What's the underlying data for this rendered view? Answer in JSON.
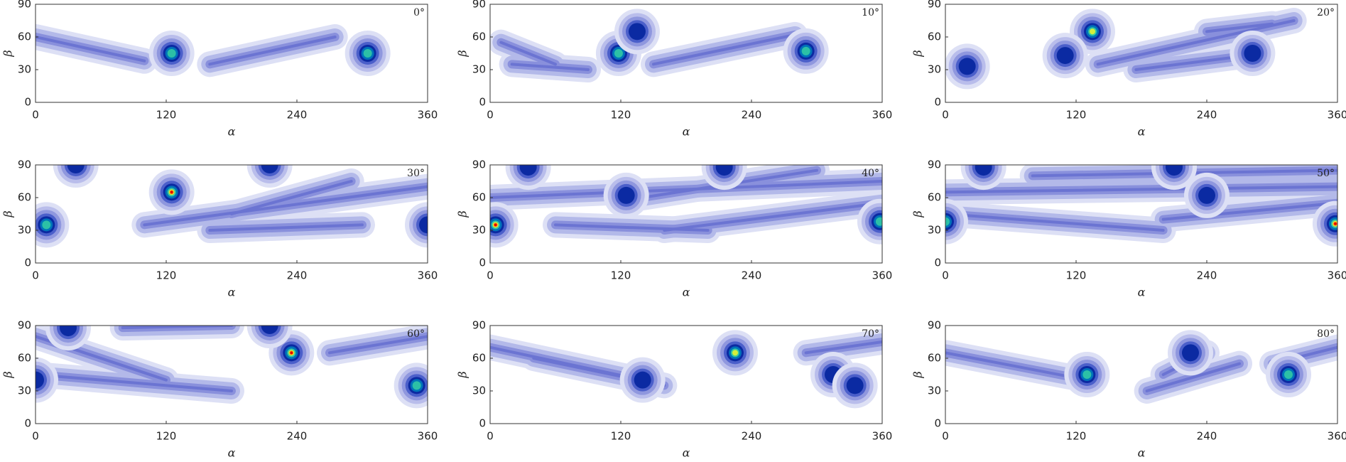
{
  "chart_data": [
    {
      "type": "contour",
      "title": "0°",
      "xlabel": "α",
      "ylabel": "β",
      "xlim": [
        0,
        360
      ],
      "ylim": [
        0,
        90
      ],
      "xticks": [
        0,
        120,
        240,
        360
      ],
      "yticks": [
        0,
        30,
        60,
        90
      ],
      "peaks": {
        "x": [
          125,
          305
        ],
        "y": [
          45,
          45
        ],
        "level": [
          2,
          2
        ]
      },
      "ridges": [
        {
          "x": [
            0,
            100
          ],
          "y": [
            60,
            38
          ]
        },
        {
          "x": [
            160,
            275
          ],
          "y": [
            35,
            60
          ]
        }
      ]
    },
    {
      "type": "contour",
      "title": "10°",
      "xlabel": "α",
      "ylabel": "β",
      "xlim": [
        0,
        360
      ],
      "ylim": [
        0,
        90
      ],
      "xticks": [
        0,
        120,
        240,
        360
      ],
      "yticks": [
        0,
        30,
        60,
        90
      ],
      "peaks": {
        "x": [
          118,
          135,
          290
        ],
        "y": [
          45,
          65,
          47
        ],
        "level": [
          2,
          1,
          2
        ]
      },
      "ridges": [
        {
          "x": [
            10,
            60
          ],
          "y": [
            55,
            35
          ]
        },
        {
          "x": [
            150,
            280
          ],
          "y": [
            35,
            62
          ]
        },
        {
          "x": [
            20,
            90
          ],
          "y": [
            35,
            30
          ]
        }
      ]
    },
    {
      "type": "contour",
      "title": "20°",
      "xlabel": "α",
      "ylabel": "β",
      "xlim": [
        0,
        360
      ],
      "ylim": [
        0,
        90
      ],
      "xticks": [
        0,
        120,
        240,
        360
      ],
      "yticks": [
        0,
        30,
        60,
        90
      ],
      "peaks": {
        "x": [
          20,
          135,
          110,
          282
        ],
        "y": [
          33,
          65,
          43,
          45
        ],
        "level": [
          1,
          3,
          1,
          1
        ]
      },
      "ridges": [
        {
          "x": [
            140,
            320
          ],
          "y": [
            35,
            75
          ]
        },
        {
          "x": [
            175,
            270
          ],
          "y": [
            30,
            42
          ]
        },
        {
          "x": [
            240,
            300
          ],
          "y": [
            65,
            72
          ]
        }
      ]
    },
    {
      "type": "contour",
      "title": "30°",
      "xlabel": "α",
      "ylabel": "β",
      "xlim": [
        0,
        360
      ],
      "ylim": [
        0,
        90
      ],
      "xticks": [
        0,
        120,
        240,
        360
      ],
      "yticks": [
        0,
        30,
        60,
        90
      ],
      "peaks": {
        "x": [
          10,
          125,
          37,
          215,
          360
        ],
        "y": [
          35,
          65,
          90,
          90,
          35
        ],
        "level": [
          2,
          4,
          1,
          1,
          1
        ]
      },
      "ridges": [
        {
          "x": [
            100,
            360
          ],
          "y": [
            35,
            70
          ]
        },
        {
          "x": [
            160,
            300
          ],
          "y": [
            30,
            35
          ]
        },
        {
          "x": [
            180,
            290
          ],
          "y": [
            45,
            75
          ]
        }
      ]
    },
    {
      "type": "contour",
      "title": "40°",
      "xlabel": "α",
      "ylabel": "β",
      "xlim": [
        0,
        360
      ],
      "ylim": [
        0,
        90
      ],
      "xticks": [
        0,
        120,
        240,
        360
      ],
      "yticks": [
        0,
        30,
        60,
        90
      ],
      "peaks": {
        "x": [
          5,
          35,
          125,
          215,
          358
        ],
        "y": [
          35,
          88,
          62,
          88,
          38
        ],
        "level": [
          4,
          1,
          1,
          1,
          2
        ]
      },
      "ridges": [
        {
          "x": [
            0,
            360
          ],
          "y": [
            60,
            75
          ]
        },
        {
          "x": [
            60,
            200
          ],
          "y": [
            35,
            30
          ]
        },
        {
          "x": [
            160,
            360
          ],
          "y": [
            30,
            55
          ]
        },
        {
          "x": [
            140,
            300
          ],
          "y": [
            60,
            85
          ]
        }
      ]
    },
    {
      "type": "contour",
      "title": "50°",
      "xlabel": "α",
      "ylabel": "β",
      "xlim": [
        0,
        360
      ],
      "ylim": [
        0,
        90
      ],
      "xticks": [
        0,
        120,
        240,
        360
      ],
      "yticks": [
        0,
        30,
        60,
        90
      ],
      "peaks": {
        "x": [
          0,
          35,
          210,
          240,
          358
        ],
        "y": [
          38,
          88,
          88,
          62,
          36
        ],
        "level": [
          2,
          1,
          1,
          1,
          4
        ]
      },
      "ridges": [
        {
          "x": [
            0,
            360
          ],
          "y": [
            65,
            70
          ]
        },
        {
          "x": [
            0,
            200
          ],
          "y": [
            45,
            30
          ]
        },
        {
          "x": [
            80,
            360
          ],
          "y": [
            80,
            85
          ]
        },
        {
          "x": [
            200,
            360
          ],
          "y": [
            40,
            55
          ]
        }
      ]
    },
    {
      "type": "contour",
      "title": "60°",
      "xlabel": "α",
      "ylabel": "β",
      "xlim": [
        0,
        360
      ],
      "ylim": [
        0,
        90
      ],
      "xticks": [
        0,
        120,
        240,
        360
      ],
      "yticks": [
        0,
        30,
        60,
        90
      ],
      "peaks": {
        "x": [
          235,
          350,
          30,
          215,
          0
        ],
        "y": [
          65,
          35,
          88,
          90,
          40
        ],
        "level": [
          4,
          2,
          1,
          1,
          1
        ]
      },
      "ridges": [
        {
          "x": [
            0,
            120
          ],
          "y": [
            80,
            40
          ]
        },
        {
          "x": [
            0,
            180
          ],
          "y": [
            45,
            30
          ]
        },
        {
          "x": [
            270,
            360
          ],
          "y": [
            65,
            80
          ]
        },
        {
          "x": [
            80,
            180
          ],
          "y": [
            88,
            90
          ]
        }
      ]
    },
    {
      "type": "contour",
      "title": "70°",
      "xlabel": "α",
      "ylabel": "β",
      "xlim": [
        0,
        360
      ],
      "ylim": [
        0,
        90
      ],
      "xticks": [
        0,
        120,
        240,
        360
      ],
      "yticks": [
        0,
        30,
        60,
        90
      ],
      "peaks": {
        "x": [
          225,
          140,
          315,
          335
        ],
        "y": [
          65,
          40,
          45,
          35
        ],
        "level": [
          3,
          1,
          1,
          1
        ]
      },
      "ridges": [
        {
          "x": [
            0,
            140
          ],
          "y": [
            70,
            40
          ]
        },
        {
          "x": [
            40,
            160
          ],
          "y": [
            60,
            35
          ]
        },
        {
          "x": [
            290,
            360
          ],
          "y": [
            65,
            75
          ]
        }
      ]
    },
    {
      "type": "contour",
      "title": "80°",
      "xlabel": "α",
      "ylabel": "β",
      "xlim": [
        0,
        360
      ],
      "ylim": [
        0,
        90
      ],
      "xticks": [
        0,
        120,
        240,
        360
      ],
      "yticks": [
        0,
        30,
        60,
        90
      ],
      "peaks": {
        "x": [
          130,
          225,
          315
        ],
        "y": [
          45,
          65,
          45
        ],
        "level": [
          2,
          1,
          2
        ]
      },
      "ridges": [
        {
          "x": [
            0,
            130
          ],
          "y": [
            65,
            40
          ]
        },
        {
          "x": [
            185,
            270
          ],
          "y": [
            30,
            55
          ]
        },
        {
          "x": [
            300,
            360
          ],
          "y": [
            55,
            70
          ]
        },
        {
          "x": [
            200,
            240
          ],
          "y": [
            45,
            65
          ]
        }
      ]
    }
  ]
}
